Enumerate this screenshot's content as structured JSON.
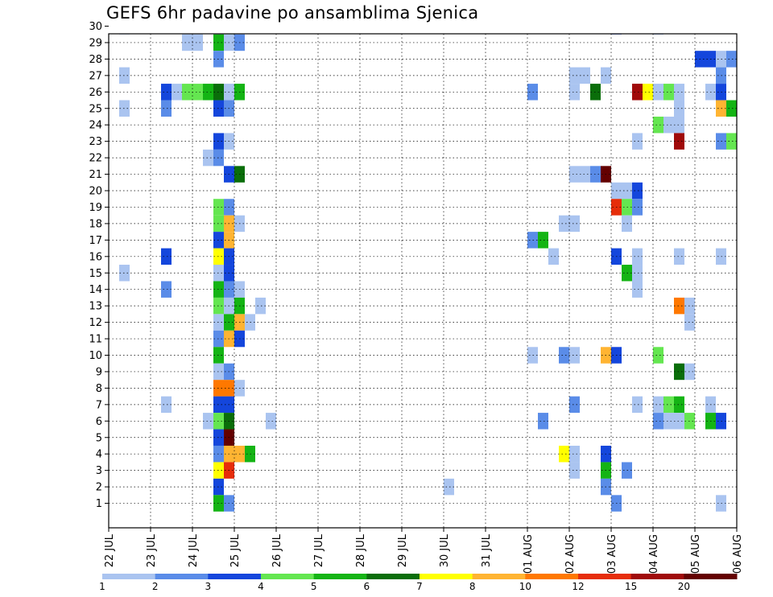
{
  "chart_data": {
    "type": "heatmap",
    "title": "GEFS 6hr padavine po ansamblima Sjenica",
    "xlabel": "",
    "ylabel": "",
    "x_ticks": [
      "22 JUL",
      "23 JUL",
      "24 JUL",
      "25 JUL",
      "26 JUL",
      "27 JUL",
      "28 JUL",
      "29 JUL",
      "30 JUL",
      "31 JUL",
      "01 AUG",
      "02 AUG",
      "03 AUG",
      "04 AUG",
      "05 AUG",
      "06 AUG"
    ],
    "y_ticks": [
      "1",
      "2",
      "3",
      "4",
      "5",
      "6",
      "7",
      "8",
      "9",
      "10",
      "11",
      "12",
      "13",
      "14",
      "15",
      "16",
      "17",
      "18",
      "19",
      "20",
      "21",
      "22",
      "23",
      "24",
      "25",
      "26",
      "27",
      "28",
      "29",
      "30"
    ],
    "ylim": [
      0,
      30
    ],
    "x_unit": "6h steps from 22 JUL 00Z",
    "grid": true,
    "legend_position": "bottom",
    "levels": [
      {
        "label": "1",
        "color": "#aac4f0"
      },
      {
        "label": "2",
        "color": "#5a8ce8"
      },
      {
        "label": "3",
        "color": "#1446dc"
      },
      {
        "label": "4",
        "color": "#64e650"
      },
      {
        "label": "5",
        "color": "#14b414"
      },
      {
        "label": "6",
        "color": "#0a6e0a"
      },
      {
        "label": "7",
        "color": "#ffff00"
      },
      {
        "label": "8",
        "color": "#ffb432"
      },
      {
        "label": "10",
        "color": "#ff7800"
      },
      {
        "label": "12",
        "color": "#e62d0a"
      },
      {
        "label": "15",
        "color": "#a00a0a"
      },
      {
        "label": "20",
        "color": "#640000"
      }
    ],
    "cells": [
      [
        1,
        30,
        0
      ],
      [
        10,
        30,
        1
      ],
      [
        11,
        30,
        3
      ],
      [
        48,
        30,
        2
      ],
      [
        52,
        30,
        1
      ],
      [
        7,
        29,
        0
      ],
      [
        8,
        29,
        0
      ],
      [
        10,
        29,
        4
      ],
      [
        11,
        29,
        0
      ],
      [
        12,
        29,
        1
      ],
      [
        10,
        28,
        1
      ],
      [
        56,
        28,
        2
      ],
      [
        57,
        28,
        2
      ],
      [
        58,
        28,
        0
      ],
      [
        59,
        28,
        1
      ],
      [
        1,
        27,
        0
      ],
      [
        44,
        27,
        0
      ],
      [
        45,
        27,
        0
      ],
      [
        47,
        27,
        0
      ],
      [
        58,
        27,
        1
      ],
      [
        5,
        26,
        2
      ],
      [
        6,
        26,
        0
      ],
      [
        7,
        26,
        3
      ],
      [
        8,
        26,
        3
      ],
      [
        9,
        26,
        4
      ],
      [
        10,
        26,
        5
      ],
      [
        11,
        26,
        0
      ],
      [
        12,
        26,
        4
      ],
      [
        40,
        26,
        1
      ],
      [
        44,
        26,
        0
      ],
      [
        46,
        26,
        5
      ],
      [
        50,
        26,
        10
      ],
      [
        51,
        26,
        6
      ],
      [
        52,
        26,
        0
      ],
      [
        53,
        26,
        3
      ],
      [
        54,
        26,
        0
      ],
      [
        57,
        26,
        0
      ],
      [
        58,
        26,
        2
      ],
      [
        1,
        25,
        0
      ],
      [
        5,
        25,
        1
      ],
      [
        10,
        25,
        2
      ],
      [
        11,
        25,
        1
      ],
      [
        54,
        25,
        0
      ],
      [
        58,
        25,
        7
      ],
      [
        59,
        25,
        4
      ],
      [
        52,
        24,
        3
      ],
      [
        53,
        24,
        0
      ],
      [
        54,
        24,
        0
      ],
      [
        10,
        23,
        2
      ],
      [
        11,
        23,
        0
      ],
      [
        50,
        23,
        0
      ],
      [
        54,
        23,
        10
      ],
      [
        58,
        23,
        1
      ],
      [
        59,
        23,
        3
      ],
      [
        9,
        22,
        0
      ],
      [
        10,
        22,
        1
      ],
      [
        11,
        21,
        2
      ],
      [
        12,
        21,
        5
      ],
      [
        44,
        21,
        0
      ],
      [
        45,
        21,
        0
      ],
      [
        46,
        21,
        1
      ],
      [
        47,
        21,
        11
      ],
      [
        48,
        20,
        0
      ],
      [
        49,
        20,
        0
      ],
      [
        50,
        20,
        2
      ],
      [
        10,
        19,
        3
      ],
      [
        11,
        19,
        1
      ],
      [
        48,
        19,
        9
      ],
      [
        49,
        19,
        3
      ],
      [
        50,
        19,
        1
      ],
      [
        10,
        18,
        3
      ],
      [
        11,
        18,
        7
      ],
      [
        12,
        18,
        0
      ],
      [
        43,
        18,
        0
      ],
      [
        44,
        18,
        0
      ],
      [
        49,
        18,
        0
      ],
      [
        10,
        17,
        2
      ],
      [
        11,
        17,
        7
      ],
      [
        40,
        17,
        1
      ],
      [
        41,
        17,
        4
      ],
      [
        5,
        16,
        2
      ],
      [
        10,
        16,
        6
      ],
      [
        11,
        16,
        2
      ],
      [
        42,
        16,
        0
      ],
      [
        48,
        16,
        2
      ],
      [
        50,
        16,
        0
      ],
      [
        54,
        16,
        0
      ],
      [
        58,
        16,
        0
      ],
      [
        1,
        15,
        0
      ],
      [
        10,
        15,
        0
      ],
      [
        11,
        15,
        2
      ],
      [
        49,
        15,
        4
      ],
      [
        50,
        15,
        0
      ],
      [
        5,
        14,
        1
      ],
      [
        10,
        14,
        4
      ],
      [
        11,
        14,
        1
      ],
      [
        12,
        14,
        0
      ],
      [
        50,
        14,
        0
      ],
      [
        10,
        13,
        3
      ],
      [
        11,
        13,
        0
      ],
      [
        12,
        13,
        4
      ],
      [
        14,
        13,
        0
      ],
      [
        54,
        13,
        8
      ],
      [
        55,
        13,
        0
      ],
      [
        10,
        12,
        0
      ],
      [
        11,
        12,
        4
      ],
      [
        12,
        12,
        7
      ],
      [
        13,
        12,
        0
      ],
      [
        55,
        12,
        0
      ],
      [
        10,
        11,
        1
      ],
      [
        11,
        11,
        7
      ],
      [
        12,
        11,
        2
      ],
      [
        10,
        10,
        4
      ],
      [
        40,
        10,
        0
      ],
      [
        43,
        10,
        1
      ],
      [
        44,
        10,
        0
      ],
      [
        47,
        10,
        7
      ],
      [
        48,
        10,
        2
      ],
      [
        52,
        10,
        3
      ],
      [
        10,
        9,
        0
      ],
      [
        11,
        9,
        1
      ],
      [
        54,
        9,
        5
      ],
      [
        55,
        9,
        0
      ],
      [
        10,
        8,
        8
      ],
      [
        11,
        8,
        8
      ],
      [
        12,
        8,
        0
      ],
      [
        5,
        7,
        0
      ],
      [
        10,
        7,
        2
      ],
      [
        11,
        7,
        2
      ],
      [
        44,
        7,
        1
      ],
      [
        50,
        7,
        0
      ],
      [
        52,
        7,
        0
      ],
      [
        53,
        7,
        3
      ],
      [
        54,
        7,
        4
      ],
      [
        57,
        7,
        0
      ],
      [
        9,
        6,
        0
      ],
      [
        10,
        6,
        3
      ],
      [
        11,
        6,
        5
      ],
      [
        15,
        6,
        0
      ],
      [
        41,
        6,
        1
      ],
      [
        52,
        6,
        1
      ],
      [
        53,
        6,
        0
      ],
      [
        54,
        6,
        0
      ],
      [
        55,
        6,
        3
      ],
      [
        57,
        6,
        4
      ],
      [
        58,
        6,
        2
      ],
      [
        10,
        5,
        2
      ],
      [
        11,
        5,
        11
      ],
      [
        10,
        4,
        1
      ],
      [
        11,
        4,
        7
      ],
      [
        12,
        4,
        7
      ],
      [
        13,
        4,
        4
      ],
      [
        43,
        4,
        6
      ],
      [
        44,
        4,
        0
      ],
      [
        47,
        4,
        2
      ],
      [
        10,
        3,
        6
      ],
      [
        11,
        3,
        9
      ],
      [
        44,
        3,
        0
      ],
      [
        47,
        3,
        4
      ],
      [
        49,
        3,
        1
      ],
      [
        10,
        2,
        2
      ],
      [
        32,
        2,
        0
      ],
      [
        47,
        2,
        1
      ],
      [
        10,
        1,
        4
      ],
      [
        11,
        1,
        1
      ],
      [
        48,
        1,
        1
      ],
      [
        58,
        1,
        0
      ]
    ]
  }
}
